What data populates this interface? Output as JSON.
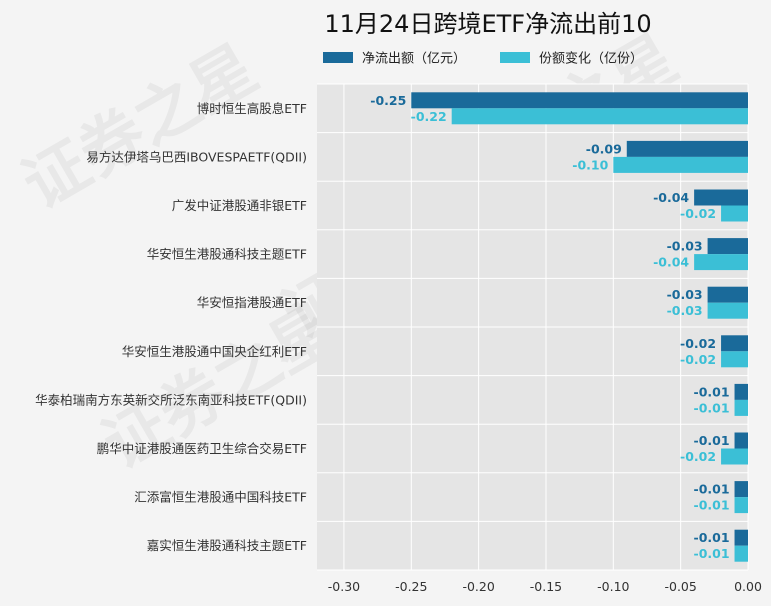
{
  "chart_data": {
    "type": "bar",
    "orientation": "horizontal",
    "title": "11月24日跨境ETF净流出前10",
    "categories": [
      "博时恒生高股息ETF",
      "易方达伊塔乌巴西IBOVESPAETF(QDII)",
      "广发中证港股通非银ETF",
      "华安恒生港股通科技主题ETF",
      "华安恒指港股通ETF",
      "华安恒生港股通中国央企红利ETF",
      "华泰柏瑞南方东英新交所泛东南亚科技ETF(QDII)",
      "鹏华中证港股通医药卫生综合交易ETF",
      "汇添富恒生港股通中国科技ETF",
      "嘉实恒生港股通科技主题ETF"
    ],
    "series": [
      {
        "name": "净流出额（亿元）",
        "color": "#1a6a9a",
        "values": [
          -0.25,
          -0.09,
          -0.04,
          -0.03,
          -0.03,
          -0.02,
          -0.01,
          -0.01,
          -0.01,
          -0.01
        ],
        "labels": [
          "-0.25",
          "-0.09",
          "-0.04",
          "-0.03",
          "-0.03",
          "-0.02",
          "-0.01",
          "-0.01",
          "-0.01",
          "-0.01"
        ]
      },
      {
        "name": "份额变化（亿份）",
        "color": "#3bbfd6",
        "values": [
          -0.22,
          -0.1,
          -0.02,
          -0.04,
          -0.03,
          -0.02,
          -0.01,
          -0.02,
          -0.01,
          -0.01
        ],
        "labels": [
          "-0.22",
          "-0.10",
          "-0.02",
          "-0.04",
          "-0.03",
          "-0.02",
          "-0.01",
          "-0.02",
          "-0.01",
          "-0.01"
        ]
      }
    ],
    "xlim": [
      -0.32,
      0.0
    ],
    "xticks": [
      -0.3,
      -0.25,
      -0.2,
      -0.15,
      -0.1,
      -0.05,
      0.0
    ],
    "xtick_labels": [
      "-0.30",
      "-0.25",
      "-0.20",
      "-0.15",
      "-0.10",
      "-0.05",
      "0.00"
    ],
    "grid": true,
    "legend_position": "top",
    "plot_background": "#e5e5e5"
  },
  "watermark": "证券之星"
}
